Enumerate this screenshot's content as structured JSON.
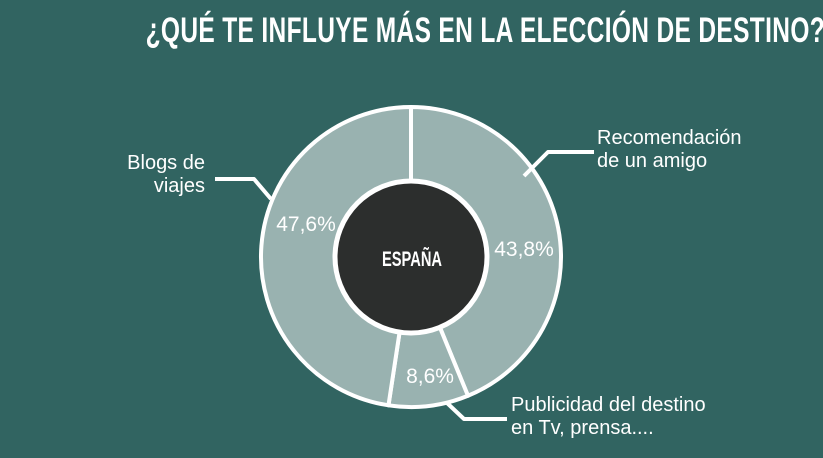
{
  "title": "¿QUÉ TE INFLUYE MÁS EN LA ELECCIÓN DE DESTINO?",
  "colors": {
    "background": "#316461",
    "slice_fill": "#99B2B0",
    "center_circle": "#2C2E2D",
    "line": "#FFFFFF",
    "text": "#FFFFFF"
  },
  "chart_data": {
    "type": "pie",
    "variant": "donut",
    "title": "¿QUÉ TE INFLUYE MÁS EN LA ELECCIÓN DE DESTINO?",
    "center_label": "ESPAÑA",
    "unit": "%",
    "start_angle_deg": 0,
    "direction": "clockwise",
    "legend": "none",
    "slices": [
      {
        "id": "recomendacion",
        "label": "Recomendación de un amigo",
        "value": 43.8,
        "display": "43,8%"
      },
      {
        "id": "publicidad",
        "label": "Publicidad del destino en Tv, prensa....",
        "value": 8.6,
        "display": "8,6%"
      },
      {
        "id": "blogs",
        "label": "Blogs de viajes",
        "value": 47.6,
        "display": "47,6%"
      }
    ]
  },
  "callouts": {
    "blogs": {
      "lines": [
        "Blogs de",
        "viajes"
      ]
    },
    "recomendacion": {
      "lines": [
        "Recomendación",
        "de un amigo"
      ]
    },
    "publicidad": {
      "lines": [
        "Publicidad del destino",
        "en Tv, prensa...."
      ]
    }
  }
}
